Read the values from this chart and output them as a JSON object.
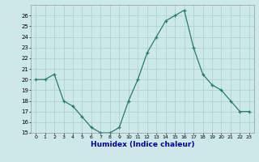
{
  "x": [
    0,
    1,
    2,
    3,
    4,
    5,
    6,
    7,
    8,
    9,
    10,
    11,
    12,
    13,
    14,
    15,
    16,
    17,
    18,
    19,
    20,
    21,
    22,
    23
  ],
  "y": [
    20,
    20,
    20.5,
    18,
    17.5,
    16.5,
    15.5,
    15,
    15,
    15.5,
    18,
    20,
    22.5,
    24,
    25.5,
    26,
    26.5,
    23,
    20.5,
    19.5,
    19,
    18,
    17,
    17
  ],
  "line_color": "#2d7a6a",
  "marker": "+",
  "marker_size": 3.5,
  "bg_color": "#cce8e8",
  "grid_color": "#aacece",
  "xlabel": "Humidex (Indice chaleur)",
  "ylim": [
    15,
    27
  ],
  "xlim": [
    -0.5,
    23.5
  ],
  "yticks": [
    15,
    16,
    17,
    18,
    19,
    20,
    21,
    22,
    23,
    24,
    25,
    26
  ],
  "xticks": [
    0,
    1,
    2,
    3,
    4,
    5,
    6,
    7,
    8,
    9,
    10,
    11,
    12,
    13,
    14,
    15,
    16,
    17,
    18,
    19,
    20,
    21,
    22,
    23
  ],
  "xtick_labels": [
    "0",
    "1",
    "2",
    "3",
    "4",
    "5",
    "6",
    "7",
    "8",
    "9",
    "10",
    "11",
    "12",
    "13",
    "14",
    "15",
    "16",
    "17",
    "18",
    "19",
    "20",
    "21",
    "22",
    "23"
  ]
}
